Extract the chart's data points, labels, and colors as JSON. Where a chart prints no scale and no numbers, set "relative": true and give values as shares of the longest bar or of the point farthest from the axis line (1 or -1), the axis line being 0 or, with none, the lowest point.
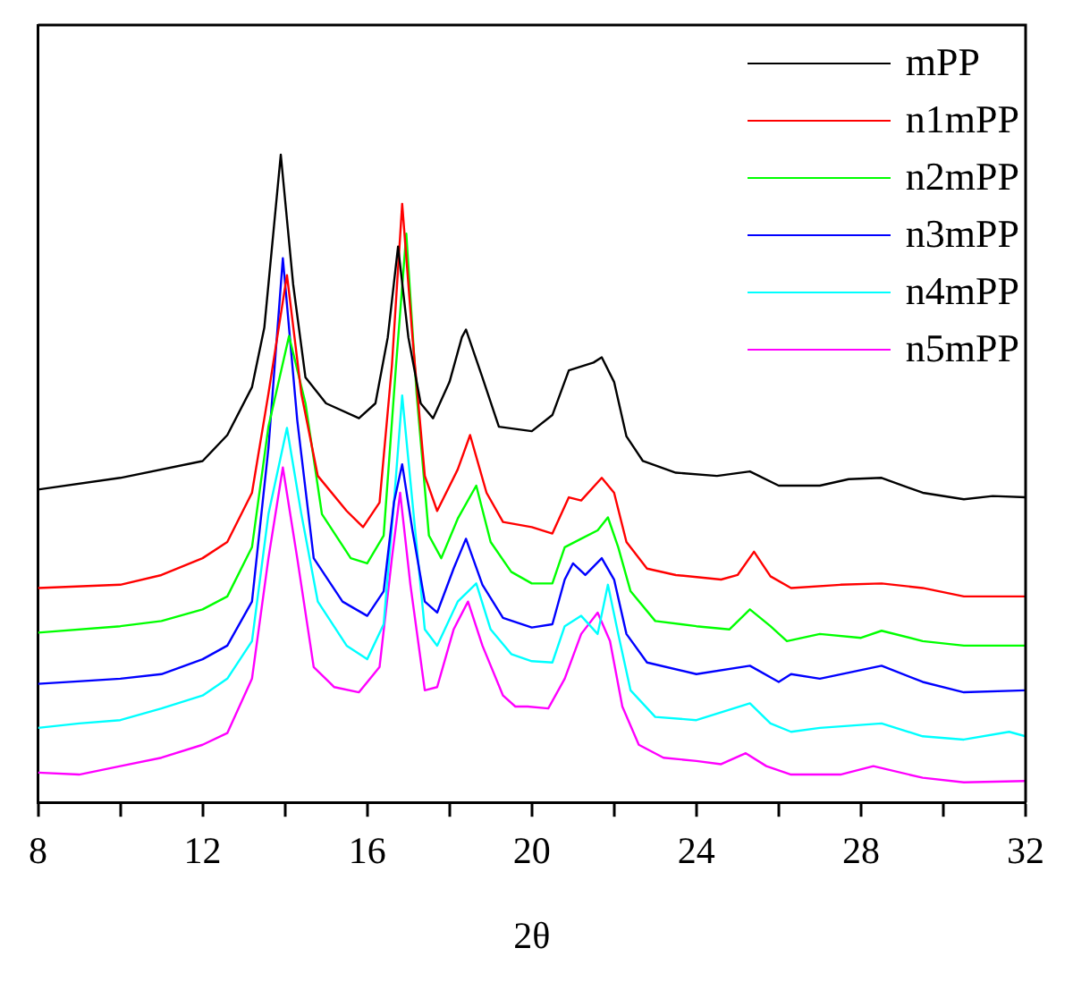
{
  "chart_data": {
    "type": "line",
    "xlabel": "2θ",
    "relative": true,
    "xlim": [
      8,
      32
    ],
    "xticks": [
      8,
      {
        "value": 10,
        "label": null
      },
      12,
      {
        "value": 14,
        "label": null
      },
      16,
      {
        "value": 18,
        "label": null
      },
      20,
      {
        "value": 22,
        "label": null
      },
      24,
      {
        "value": 26,
        "label": null
      },
      28,
      {
        "value": 30,
        "label": null
      },
      32
    ],
    "legend": "top right",
    "marker": "none",
    "line_style": "solid",
    "grid": false,
    "series": [
      {
        "name": "mPP",
        "color": "#000000",
        "x": [
          8,
          10,
          12,
          12.6,
          13.2,
          13.5,
          13.9,
          14.2,
          14.5,
          15,
          15.8,
          16.2,
          16.5,
          16.75,
          17,
          17.3,
          17.6,
          18,
          18.3,
          18.4,
          18.8,
          19.2,
          20,
          20.5,
          20.9,
          21.5,
          21.7,
          22,
          22.3,
          22.7,
          23.5,
          24.5,
          25.3,
          26,
          27,
          27.7,
          28.5,
          29.5,
          30.5,
          31.2,
          32
        ],
        "values": [
          0.483,
          0.501,
          0.527,
          0.567,
          0.641,
          0.733,
          1,
          0.8,
          0.656,
          0.616,
          0.593,
          0.616,
          0.718,
          0.858,
          0.718,
          0.616,
          0.593,
          0.649,
          0.718,
          0.73,
          0.656,
          0.58,
          0.573,
          0.598,
          0.667,
          0.679,
          0.687,
          0.649,
          0.565,
          0.527,
          0.509,
          0.504,
          0.511,
          0.489,
          0.489,
          0.499,
          0.501,
          0.478,
          0.468,
          0.473,
          0.471
        ]
      },
      {
        "name": "n1mPP",
        "color": "#ff0000",
        "x": [
          8,
          10,
          11,
          12,
          12.6,
          13.2,
          13.6,
          14.05,
          14.4,
          14.8,
          15.5,
          15.9,
          16.3,
          16.6,
          16.85,
          17.1,
          17.4,
          17.7,
          18.2,
          18.5,
          18.9,
          19.3,
          20,
          20.5,
          20.9,
          21.2,
          21.7,
          22,
          22.3,
          22.8,
          23.5,
          24.6,
          25,
          25.4,
          25.8,
          26.3,
          27.5,
          28.5,
          29.5,
          30.5,
          32
        ],
        "values": [
          0.331,
          0.336,
          0.351,
          0.377,
          0.402,
          0.478,
          0.631,
          0.814,
          0.631,
          0.504,
          0.45,
          0.425,
          0.463,
          0.674,
          0.924,
          0.718,
          0.504,
          0.45,
          0.514,
          0.567,
          0.478,
          0.433,
          0.425,
          0.415,
          0.471,
          0.466,
          0.501,
          0.478,
          0.402,
          0.361,
          0.351,
          0.344,
          0.351,
          0.387,
          0.349,
          0.331,
          0.336,
          0.338,
          0.331,
          0.318,
          0.318
        ]
      },
      {
        "name": "n2mPP",
        "color": "#00ff00",
        "x": [
          8,
          10,
          11,
          12,
          12.6,
          13.2,
          13.6,
          14.1,
          14.5,
          14.9,
          15.6,
          16,
          16.4,
          16.7,
          16.95,
          17.2,
          17.5,
          17.8,
          18.2,
          18.65,
          19,
          19.5,
          20,
          20.5,
          20.8,
          21.2,
          21.6,
          21.85,
          22.1,
          22.4,
          23,
          24,
          24.8,
          25.3,
          25.8,
          26.2,
          27,
          28,
          28.5,
          29.5,
          30.5,
          32
        ],
        "values": [
          0.262,
          0.272,
          0.28,
          0.298,
          0.318,
          0.394,
          0.58,
          0.72,
          0.616,
          0.445,
          0.377,
          0.369,
          0.412,
          0.674,
          0.878,
          0.631,
          0.412,
          0.377,
          0.438,
          0.489,
          0.402,
          0.356,
          0.338,
          0.338,
          0.394,
          0.407,
          0.42,
          0.44,
          0.394,
          0.326,
          0.28,
          0.272,
          0.267,
          0.298,
          0.272,
          0.249,
          0.26,
          0.254,
          0.265,
          0.249,
          0.242,
          0.242
        ]
      },
      {
        "name": "n3mPP",
        "color": "#0000ff",
        "x": [
          8,
          10,
          11,
          12,
          12.6,
          13.2,
          13.6,
          13.95,
          14.3,
          14.7,
          15.4,
          16,
          16.4,
          16.65,
          16.85,
          17.1,
          17.4,
          17.7,
          18.1,
          18.4,
          18.8,
          19.3,
          20,
          20.5,
          20.8,
          21,
          21.3,
          21.7,
          22,
          22.3,
          22.8,
          24,
          25.3,
          26,
          26.3,
          27,
          28.5,
          29.5,
          30.5,
          32
        ],
        "values": [
          0.183,
          0.191,
          0.198,
          0.221,
          0.242,
          0.31,
          0.547,
          0.84,
          0.59,
          0.377,
          0.31,
          0.288,
          0.326,
          0.463,
          0.522,
          0.42,
          0.31,
          0.293,
          0.361,
          0.407,
          0.336,
          0.285,
          0.27,
          0.275,
          0.344,
          0.369,
          0.351,
          0.377,
          0.344,
          0.26,
          0.216,
          0.198,
          0.211,
          0.186,
          0.198,
          0.191,
          0.211,
          0.186,
          0.17,
          0.173
        ]
      },
      {
        "name": "n4mPP",
        "color": "#00ffff",
        "x": [
          8,
          9,
          10,
          11,
          12,
          12.6,
          13.2,
          13.6,
          14.05,
          14.4,
          14.8,
          15.5,
          16,
          16.4,
          16.65,
          16.85,
          17.1,
          17.4,
          17.7,
          18.2,
          18.65,
          19,
          19.5,
          20,
          20.5,
          20.8,
          21.2,
          21.6,
          21.85,
          22.1,
          22.4,
          23,
          24,
          25.3,
          25.8,
          26.3,
          27,
          28.5,
          29.5,
          30.5,
          31.6,
          32
        ],
        "values": [
          0.115,
          0.122,
          0.127,
          0.145,
          0.165,
          0.191,
          0.249,
          0.445,
          0.578,
          0.445,
          0.31,
          0.242,
          0.221,
          0.275,
          0.463,
          0.628,
          0.463,
          0.267,
          0.242,
          0.31,
          0.338,
          0.267,
          0.229,
          0.218,
          0.216,
          0.272,
          0.288,
          0.26,
          0.336,
          0.26,
          0.173,
          0.132,
          0.127,
          0.153,
          0.122,
          0.109,
          0.115,
          0.122,
          0.102,
          0.097,
          0.109,
          0.102
        ]
      },
      {
        "name": "n5mPP",
        "color": "#ff00ff",
        "x": [
          8,
          9,
          10,
          11,
          12,
          12.6,
          13.2,
          13.6,
          13.95,
          14.3,
          14.7,
          15.2,
          15.8,
          16.3,
          16.6,
          16.8,
          17.05,
          17.4,
          17.7,
          18.1,
          18.45,
          18.8,
          19.3,
          19.6,
          19.9,
          20.4,
          20.8,
          21.2,
          21.6,
          21.9,
          22.2,
          22.6,
          23.2,
          24,
          24.6,
          25.2,
          25.7,
          26.3,
          27.5,
          28.3,
          29.5,
          30.5,
          32
        ],
        "values": [
          0.046,
          0.043,
          0.056,
          0.069,
          0.089,
          0.107,
          0.191,
          0.377,
          0.517,
          0.377,
          0.209,
          0.178,
          0.17,
          0.209,
          0.377,
          0.478,
          0.336,
          0.173,
          0.178,
          0.267,
          0.31,
          0.242,
          0.165,
          0.148,
          0.148,
          0.145,
          0.191,
          0.26,
          0.293,
          0.249,
          0.148,
          0.089,
          0.069,
          0.064,
          0.059,
          0.076,
          0.056,
          0.043,
          0.043,
          0.056,
          0.038,
          0.031,
          0.033
        ]
      }
    ]
  }
}
